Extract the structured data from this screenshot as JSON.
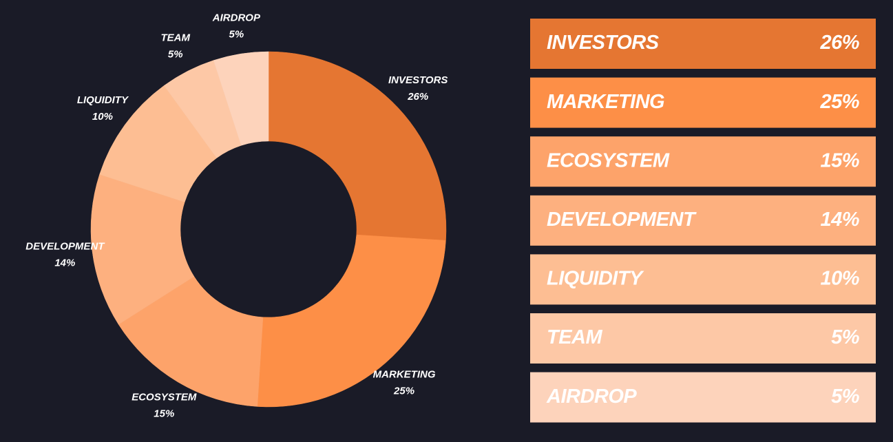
{
  "chart_data": {
    "type": "donut",
    "categories": [
      "INVESTORS",
      "MARKETING",
      "ECOSYSTEM",
      "DEVELOPMENT",
      "LIQUIDITY",
      "TEAM",
      "AIRDROP"
    ],
    "values": [
      26,
      25,
      15,
      14,
      10,
      5,
      5
    ],
    "value_labels": [
      "26%",
      "25%",
      "15%",
      "14%",
      "10%",
      "5%",
      "5%"
    ],
    "colors": [
      "#e57632",
      "#fd8f47",
      "#fda36a",
      "#fdb07f",
      "#fdbe93",
      "#fdc8a6",
      "#fdd3bb"
    ]
  }
}
